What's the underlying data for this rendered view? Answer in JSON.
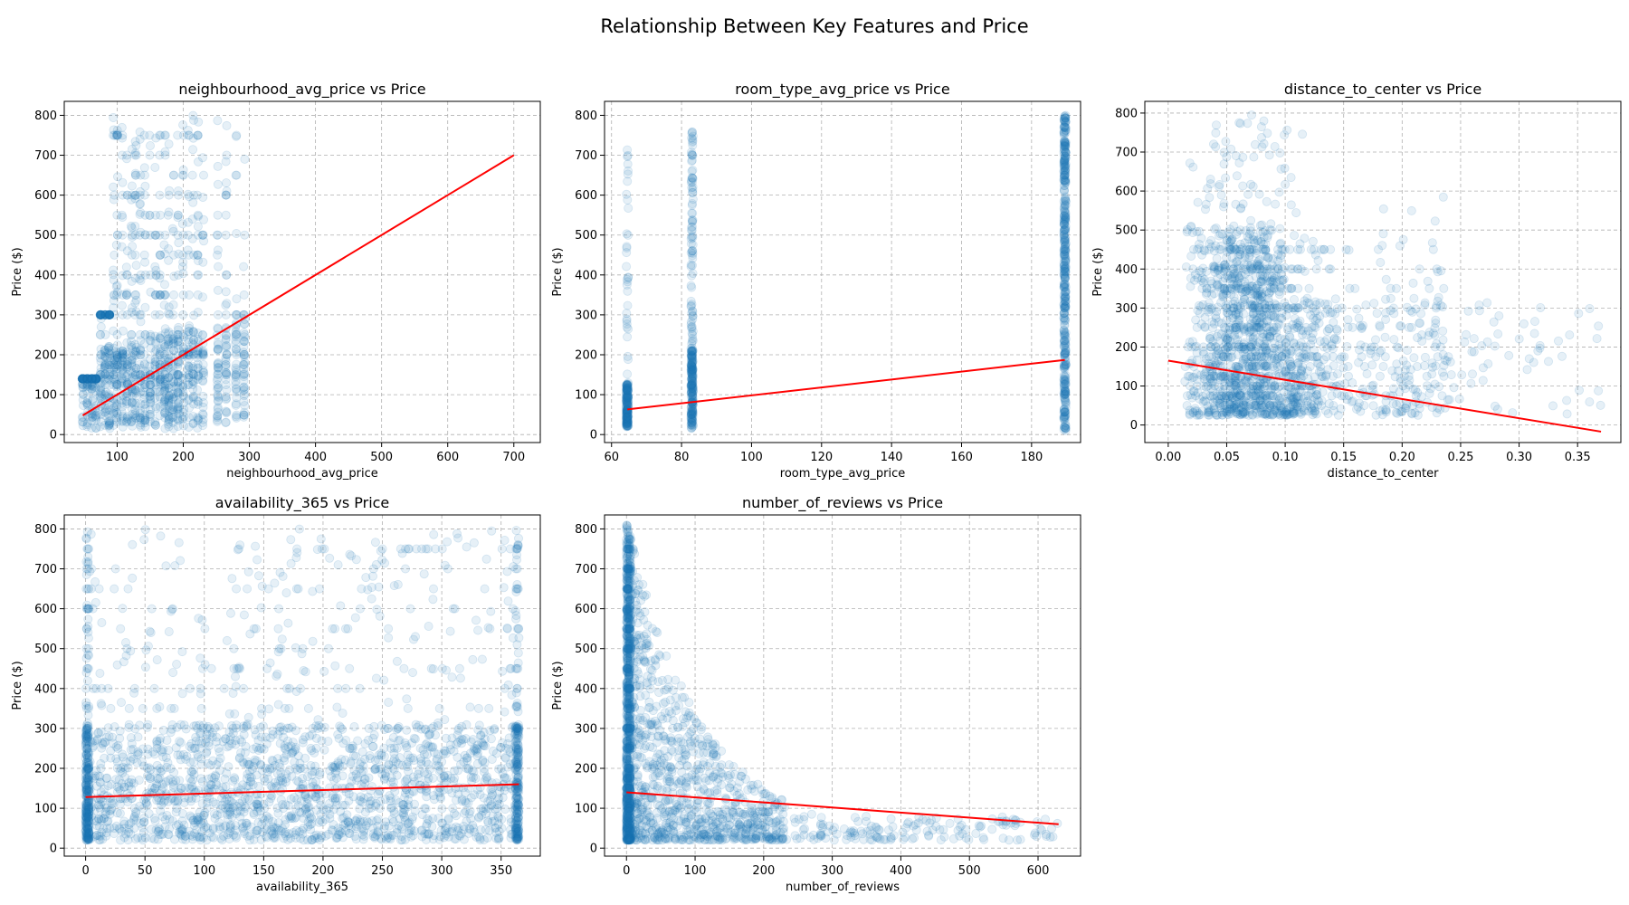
{
  "figure": {
    "title": "Relationship Between Key Features and Price",
    "colors": {
      "points": "#1f77b4",
      "trend": "#ff0000",
      "grid": "#b0b0b0"
    }
  },
  "chart_data": [
    {
      "type": "scatter",
      "title": "neighbourhood_avg_price vs Price",
      "xlabel": "neighbourhood_avg_price",
      "ylabel": "Price ($)",
      "xlim": [
        20,
        740
      ],
      "ylim": [
        -20,
        835
      ],
      "xticks": [
        100,
        200,
        300,
        400,
        500,
        600,
        700
      ],
      "yticks": [
        0,
        100,
        200,
        300,
        400,
        500,
        600,
        700,
        800
      ],
      "grid": true,
      "points_pattern": "vertical clusters at discrete x between ~45 and ~295",
      "x_columns": [
        48,
        55,
        62,
        68,
        75,
        82,
        88,
        95,
        100,
        108,
        115,
        122,
        128,
        135,
        142,
        150,
        158,
        165,
        172,
        178,
        185,
        192,
        200,
        208,
        215,
        222,
        230,
        252,
        265,
        280,
        292
      ],
      "trend": {
        "x": [
          48,
          700
        ],
        "y": [
          48,
          700
        ]
      }
    },
    {
      "type": "scatter",
      "title": "room_type_avg_price vs Price",
      "xlabel": "room_type_avg_price",
      "ylabel": "Price ($)",
      "xlim": [
        58,
        194
      ],
      "ylim": [
        -20,
        835
      ],
      "xticks": [
        60,
        80,
        100,
        120,
        140,
        160,
        180
      ],
      "yticks": [
        0,
        100,
        200,
        300,
        400,
        500,
        600,
        700,
        800
      ],
      "grid": true,
      "points_pattern": "three vertical columns",
      "x_columns": [
        64.5,
        83,
        189.5
      ],
      "trend": {
        "x": [
          64.5,
          189.5
        ],
        "y": [
          63,
          187
        ]
      }
    },
    {
      "type": "scatter",
      "title": "distance_to_center vs Price",
      "xlabel": "distance_to_center",
      "ylabel": "Price ($)",
      "xlim": [
        -0.02,
        0.387
      ],
      "ylim": [
        -45,
        830
      ],
      "xticks": [
        0.0,
        0.05,
        0.1,
        0.15,
        0.2,
        0.25,
        0.3,
        0.35
      ],
      "xtick_labels": [
        "0.00",
        "0.05",
        "0.10",
        "0.15",
        "0.20",
        "0.25",
        "0.30",
        "0.35"
      ],
      "yticks": [
        0,
        100,
        200,
        300,
        400,
        500,
        600,
        700,
        800
      ],
      "grid": true,
      "points_pattern": "dense near 0.0-0.10, thinning to 0.37",
      "trend": {
        "x": [
          0.0,
          0.37
        ],
        "y": [
          165,
          -17
        ]
      }
    },
    {
      "type": "scatter",
      "title": "availability_365 vs Price",
      "xlabel": "availability_365",
      "ylabel": "Price ($)",
      "xlim": [
        -18,
        383
      ],
      "ylim": [
        -20,
        835
      ],
      "xticks": [
        0,
        50,
        100,
        150,
        200,
        250,
        300,
        350
      ],
      "yticks": [
        0,
        100,
        200,
        300,
        400,
        500,
        600,
        700,
        800
      ],
      "grid": true,
      "points_pattern": "uniform across 0-365, dense below 300",
      "trend": {
        "x": [
          0,
          365
        ],
        "y": [
          128,
          160
        ]
      }
    },
    {
      "type": "scatter",
      "title": "number_of_reviews vs Price",
      "xlabel": "number_of_reviews",
      "ylabel": "Price ($)",
      "xlim": [
        -32,
        662
      ],
      "ylim": [
        -20,
        835
      ],
      "xticks": [
        0,
        100,
        200,
        300,
        400,
        500,
        600
      ],
      "yticks": [
        0,
        100,
        200,
        300,
        400,
        500,
        600,
        700,
        800
      ],
      "grid": true,
      "points_pattern": "dense near 0, decaying to ~630",
      "trend": {
        "x": [
          0,
          630
        ],
        "y": [
          140,
          60
        ]
      }
    }
  ]
}
